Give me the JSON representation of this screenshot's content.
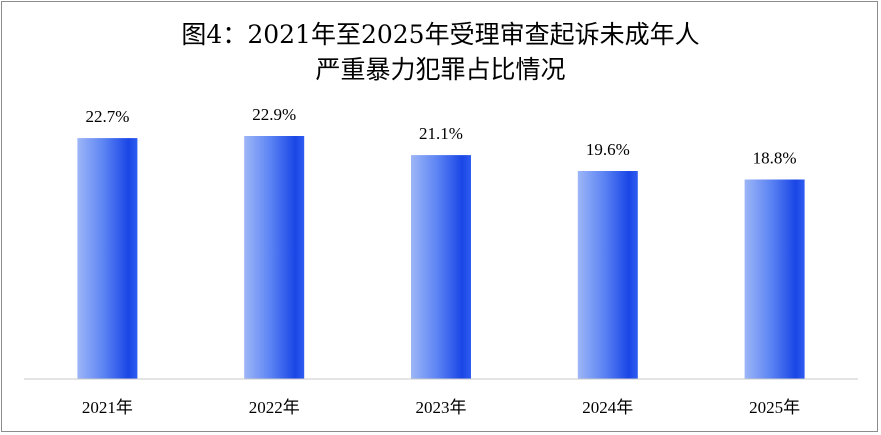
{
  "chart_data": {
    "type": "bar",
    "title_line1": "图4：2021年至2025年受理审查起诉未成年人",
    "title_line2": "严重暴力犯罪占比情况",
    "categories": [
      "2021年",
      "2022年",
      "2023年",
      "2024年",
      "2025年"
    ],
    "values": [
      22.7,
      22.9,
      21.1,
      19.6,
      18.8
    ],
    "value_labels": [
      "22.7%",
      "22.9%",
      "21.1%",
      "19.6%",
      "18.8%"
    ],
    "unit": "%",
    "xlabel": "",
    "ylabel": "",
    "ylim": [
      0,
      22.9
    ],
    "grid": false,
    "legend": "none",
    "colors": {
      "bar_dark": "#1a46e6",
      "bar_mid": "#3d6cf2",
      "bar_light": "#9db6f7",
      "axis": "#c8c8c8",
      "border": "#8c8c8c"
    }
  }
}
